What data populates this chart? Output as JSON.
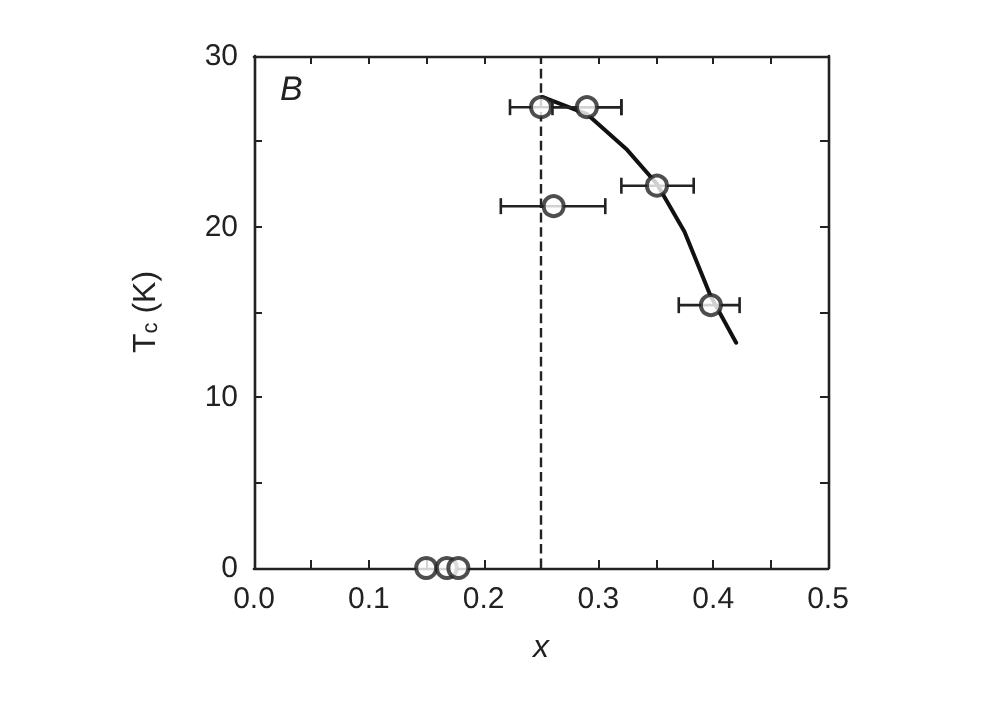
{
  "chart_data": {
    "type": "scatter",
    "xlabel": "x",
    "ylabel": "T$_{c}$ (K)",
    "annotations": [
      "B"
    ],
    "marker": "circle",
    "series": [
      {
        "color": "#222222",
        "x": [
          0.25,
          0.29,
          0.351,
          0.261,
          0.398
        ],
        "values": [
          27,
          27,
          22.4,
          21.2,
          15.4
        ],
        "xerrors": [
          [
            0.223,
            0.32
          ],
          [
            0.26,
            0.32
          ],
          [
            0.32,
            0.383
          ],
          [
            0.215,
            0.306
          ],
          [
            0.37,
            0.423
          ]
        ]
      },
      {
        "color": "#222222",
        "x": [
          0.15,
          0.168,
          0.178
        ],
        "values": [
          0,
          0,
          0
        ]
      },
      {
        "type": "line",
        "color": "#111111",
        "marker": "none",
        "line_style": "solid",
        "x": [
          0.251,
          0.29,
          0.325,
          0.351,
          0.375,
          0.398,
          0.42
        ],
        "values": [
          27.6,
          26.6,
          24.5,
          22.5,
          19.7,
          15.9,
          13.2
        ]
      }
    ],
    "ref_lines": [
      {
        "axis": "x",
        "value": 0.25,
        "line_style": "dashed",
        "color": "#222222"
      }
    ],
    "xlim": [
      0,
      0.5
    ],
    "xticks": [
      {
        "value": 0,
        "label": "0.0"
      },
      {
        "value": 0.05,
        "label": null
      },
      {
        "value": 0.1,
        "label": "0.1"
      },
      {
        "value": 0.15,
        "label": null
      },
      {
        "value": 0.2,
        "label": "0.2"
      },
      {
        "value": 0.25,
        "label": null
      },
      {
        "value": 0.3,
        "label": "0.3"
      },
      {
        "value": 0.35,
        "label": null
      },
      {
        "value": 0.4,
        "label": "0.4"
      },
      {
        "value": 0.45,
        "label": null
      },
      {
        "value": 0.5,
        "label": "0.5"
      }
    ],
    "ylim": [
      0,
      30
    ],
    "yticks": [
      0,
      {
        "value": 5,
        "label": null
      },
      10,
      {
        "value": 15,
        "label": null
      },
      20,
      {
        "value": 25,
        "label": null
      },
      30
    ],
    "grid": false
  }
}
